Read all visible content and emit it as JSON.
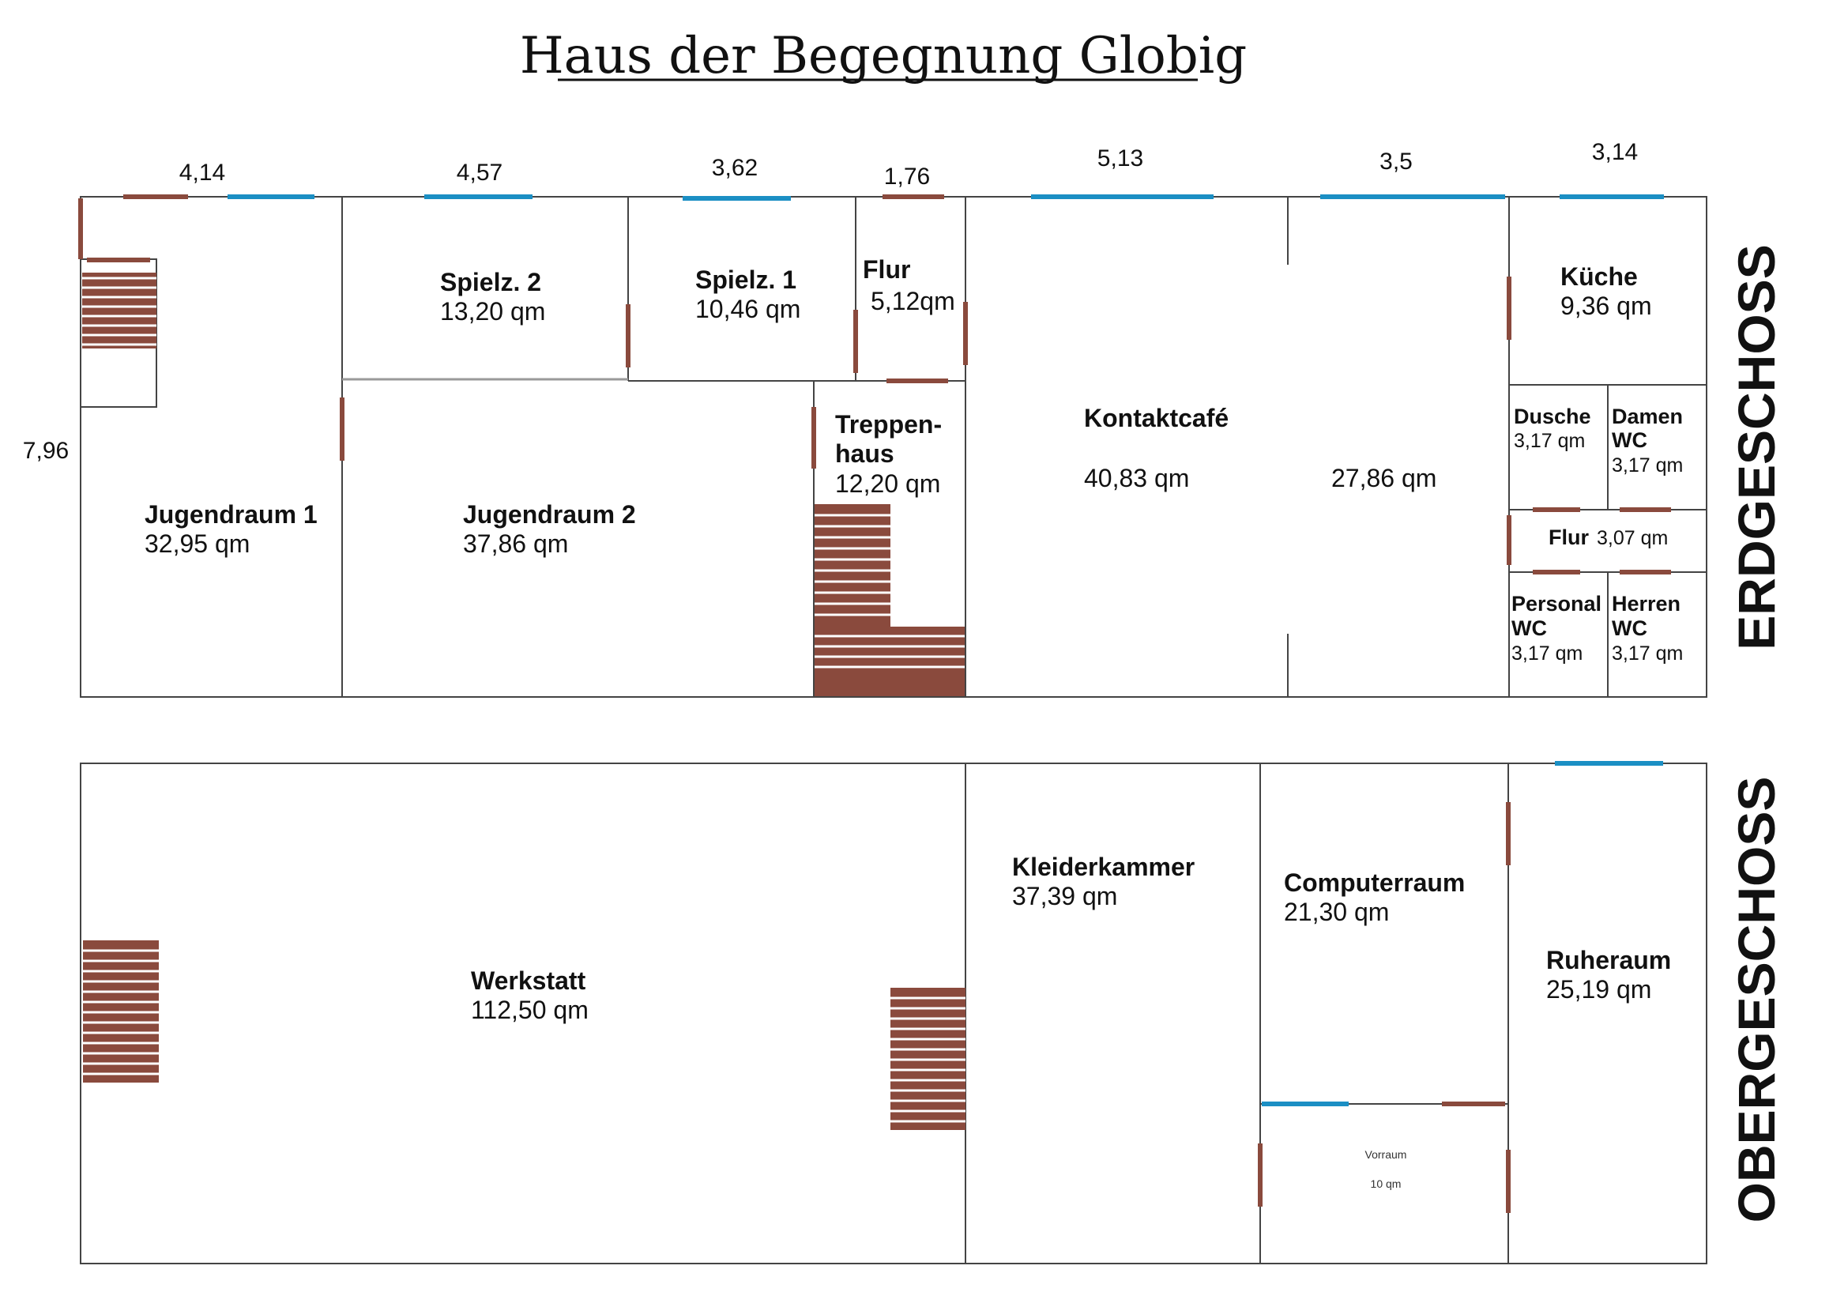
{
  "title": "Haus der Begegnung Globig",
  "floors": {
    "ground": "ERDGESCHOSS",
    "upper": "OBERGESCHOSS"
  },
  "dimensions": {
    "width_1": "4,14",
    "width_2": "4,57",
    "width_3": "3,62",
    "width_4": "1,76",
    "width_5": "5,13",
    "width_6": "3,5",
    "width_7": "3,14",
    "depth": "7,96"
  },
  "ground_rooms": {
    "spielz2": {
      "name": "Spielz. 2",
      "area": "13,20 qm"
    },
    "spielz1": {
      "name": "Spielz. 1",
      "area": "10,46 qm"
    },
    "flur": {
      "name": "Flur",
      "area": "5,12qm"
    },
    "kueche": {
      "name": "Küche",
      "area": "9,36 qm"
    },
    "treppenhaus": {
      "name_1": "Treppen-",
      "name_2": "haus",
      "area": "12,20 qm"
    },
    "kontaktcafe": {
      "name": "Kontaktcafé",
      "area": "40,83 qm"
    },
    "room_right": {
      "area": "27,86 qm"
    },
    "jugendraum1": {
      "name": "Jugendraum 1",
      "area": "32,95 qm"
    },
    "jugendraum2": {
      "name": "Jugendraum 2",
      "area": "37,86 qm"
    },
    "dusche": {
      "name": "Dusche",
      "area": "3,17 qm"
    },
    "damen_wc": {
      "name_1": "Damen",
      "name_2": "WC",
      "area": "3,17 qm"
    },
    "flur2": {
      "name": "Flur",
      "area": "3,07 qm"
    },
    "personal_wc": {
      "name_1": "Personal",
      "name_2": "WC",
      "area": "3,17 qm"
    },
    "herren_wc": {
      "name_1": "Herren",
      "name_2": "WC",
      "area": "3,17 qm"
    }
  },
  "upper_rooms": {
    "werkstatt": {
      "name": "Werkstatt",
      "area": "112,50 qm"
    },
    "kleiderkammer": {
      "name": "Kleiderkammer",
      "area": "37,39 qm"
    },
    "computerraum": {
      "name": "Computerraum",
      "area": "21,30 qm"
    },
    "ruheraum": {
      "name": "Ruheraum",
      "area": "25,19 qm"
    },
    "vorraum": {
      "name": "Vorraum",
      "area": "10 qm"
    }
  }
}
